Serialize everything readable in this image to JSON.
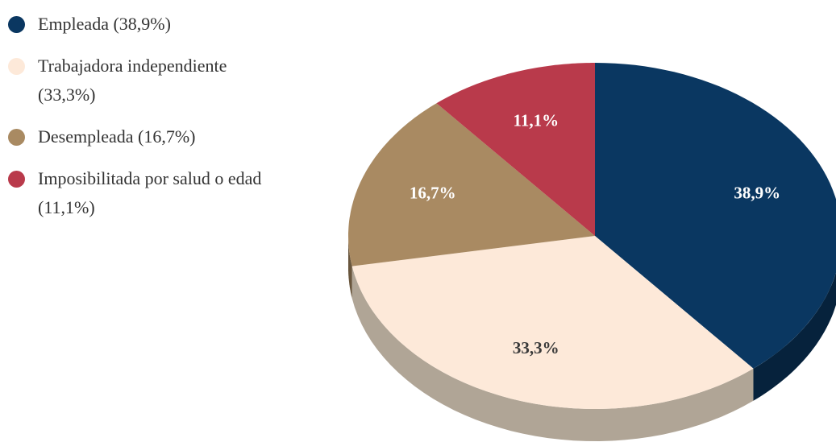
{
  "chart_data": {
    "type": "pie",
    "categories": [
      "Empleada (38,9%)",
      "Trabajadora independiente (33,3%)",
      "Desempleada (16,7%)",
      "Imposibilitada por salud o edad (11,1%)"
    ],
    "values": [
      38.9,
      33.3,
      16.7,
      11.1
    ],
    "value_labels": [
      "38,9%",
      "33,3%",
      "16,7%",
      "11,1%"
    ],
    "colors": [
      "#0a3761",
      "#fde9d9",
      "#a98a62",
      "#b93a4b"
    ],
    "legend": "top-left"
  }
}
